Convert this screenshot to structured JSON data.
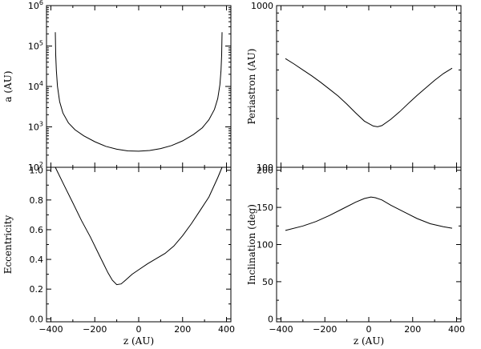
{
  "chart_data": [
    {
      "id": "a",
      "type": "line",
      "ylabel": "a (AU)",
      "xlabel": "",
      "yscale": "log",
      "ylim": [
        100,
        1000000
      ],
      "xlim": [
        -420,
        420
      ],
      "ytick_labels": [
        {
          "value": 100,
          "base": "10",
          "exp": "2"
        },
        {
          "value": 1000,
          "base": "10",
          "exp": "3"
        },
        {
          "value": 10000,
          "base": "10",
          "exp": "4"
        },
        {
          "value": 100000,
          "base": "10",
          "exp": "5"
        },
        {
          "value": 1000000,
          "base": "10",
          "exp": "6"
        }
      ],
      "show_xticklabels": false,
      "x": [
        -380,
        -378,
        -375,
        -370,
        -360,
        -345,
        -320,
        -290,
        -250,
        -200,
        -150,
        -100,
        -50,
        0,
        50,
        100,
        150,
        200,
        250,
        290,
        320,
        345,
        360,
        370,
        375,
        378,
        380
      ],
      "y": [
        220000,
        60000,
        25000,
        10000,
        4200,
        2200,
        1250,
        850,
        600,
        430,
        330,
        280,
        255,
        250,
        260,
        290,
        345,
        450,
        650,
        950,
        1500,
        2700,
        5000,
        11000,
        25000,
        60000,
        220000
      ]
    },
    {
      "id": "e",
      "type": "line",
      "ylabel": "Eccentricity",
      "xlabel": "z (AU)",
      "ylim": [
        -0.02,
        1.02
      ],
      "xlim": [
        -420,
        420
      ],
      "yticks": [
        0.0,
        0.2,
        0.4,
        0.6,
        0.8,
        1.0
      ],
      "ytick_labels": [
        "0.0",
        "0.2",
        "0.4",
        "0.6",
        "0.8",
        "1.0"
      ],
      "xticks": [
        -400,
        -200,
        0,
        200,
        400
      ],
      "xtick_labels": [
        "−400",
        "−200",
        "0",
        "200",
        "400"
      ],
      "x": [
        -380,
        -340,
        -300,
        -260,
        -220,
        -180,
        -140,
        -120,
        -100,
        -80,
        -60,
        -30,
        0,
        40,
        80,
        120,
        160,
        200,
        240,
        280,
        320,
        360,
        380
      ],
      "y": [
        1.02,
        0.9,
        0.78,
        0.66,
        0.55,
        0.43,
        0.31,
        0.26,
        0.23,
        0.235,
        0.26,
        0.3,
        0.33,
        0.37,
        0.405,
        0.44,
        0.49,
        0.56,
        0.64,
        0.73,
        0.82,
        0.95,
        1.02
      ]
    },
    {
      "id": "q",
      "type": "line",
      "ylabel": "Periastron (AU)",
      "xlabel": "",
      "yscale": "log",
      "ylim": [
        100,
        1000
      ],
      "xlim": [
        -420,
        420
      ],
      "ytick_labels": [
        {
          "value": 100,
          "label": "100"
        },
        {
          "value": 1000,
          "label": "1000"
        }
      ],
      "show_xticklabels": false,
      "x": [
        -380,
        -340,
        -300,
        -260,
        -220,
        -180,
        -140,
        -100,
        -60,
        -20,
        20,
        40,
        60,
        100,
        140,
        180,
        220,
        260,
        300,
        340,
        380
      ],
      "y": [
        470,
        435,
        400,
        368,
        336,
        305,
        276,
        246,
        217,
        193,
        180,
        178,
        181,
        198,
        220,
        248,
        278,
        310,
        345,
        380,
        410
      ]
    },
    {
      "id": "i",
      "type": "line",
      "ylabel": "Inclination (deg)",
      "xlabel": "z (AU)",
      "ylim": [
        -4,
        204
      ],
      "xlim": [
        -420,
        420
      ],
      "yticks": [
        0,
        50,
        100,
        150,
        200
      ],
      "ytick_labels": [
        "0",
        "50",
        "100",
        "150",
        "200"
      ],
      "xticks": [
        -400,
        -200,
        0,
        200,
        400
      ],
      "xtick_labels": [
        "−400",
        "−200",
        "0",
        "200",
        "400"
      ],
      "x": [
        -380,
        -300,
        -240,
        -180,
        -120,
        -60,
        -20,
        10,
        30,
        60,
        100,
        160,
        220,
        280,
        340,
        380
      ],
      "y": [
        119,
        125,
        131,
        139,
        148,
        157,
        162,
        164,
        163,
        160,
        153,
        144,
        135,
        128,
        124,
        122
      ]
    }
  ]
}
